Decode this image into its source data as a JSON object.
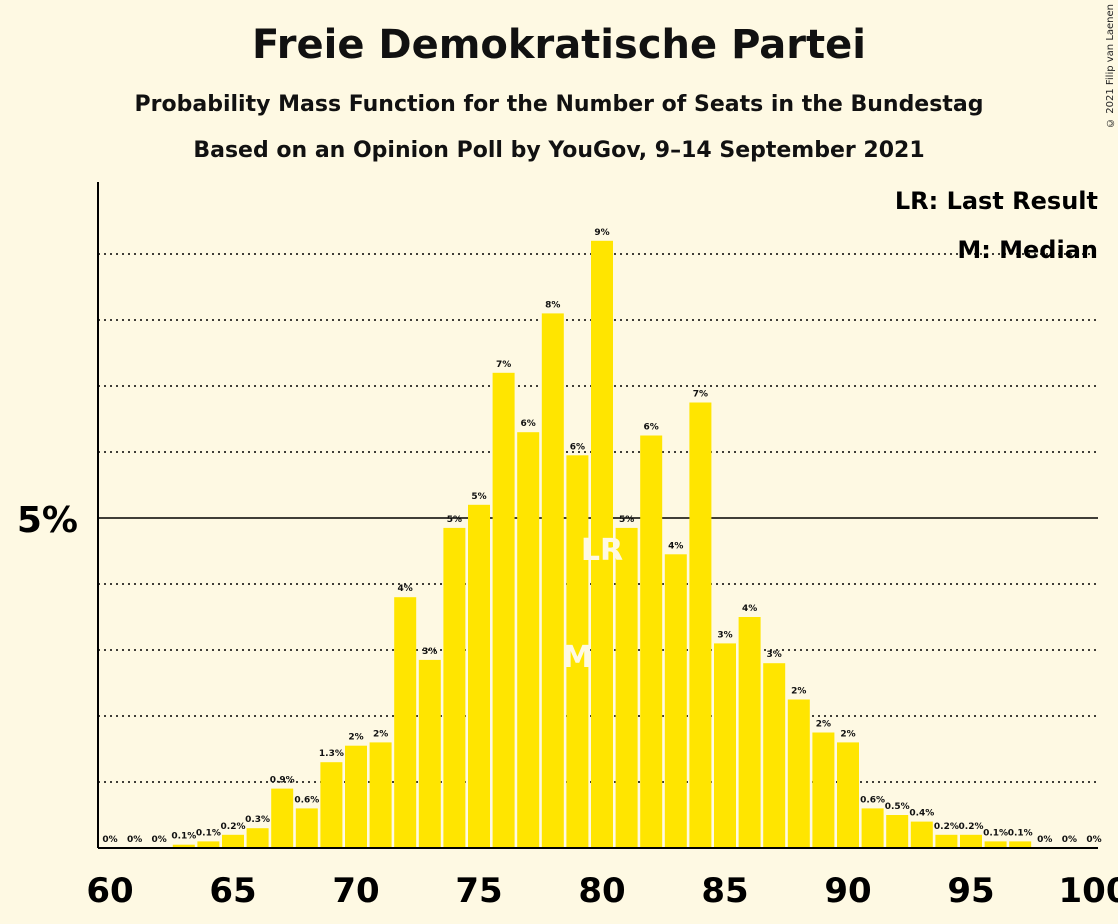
{
  "title": "Freie Demokratische Partei",
  "subtitle": "Probability Mass Function for the Number of Seats in the Bundestag",
  "subtitle2": "Based on an Opinion Poll by YouGov, 9–14 September 2021",
  "copyright": "© 2021 Filip van Laenen",
  "legend": {
    "lr": "LR: Last Result",
    "m": "M: Median"
  },
  "colors": {
    "bar": "#ffe500",
    "background": "#fef9e3",
    "median_label": "#fef9e3"
  },
  "chart_data": {
    "type": "bar",
    "x": [
      60,
      61,
      62,
      63,
      64,
      65,
      66,
      67,
      68,
      69,
      70,
      71,
      72,
      73,
      74,
      75,
      76,
      77,
      78,
      79,
      80,
      81,
      82,
      83,
      84,
      85,
      86,
      87,
      88,
      89,
      90,
      91,
      92,
      93,
      94,
      95,
      96,
      97,
      98,
      99,
      100
    ],
    "values": [
      0,
      0,
      0,
      0.05,
      0.1,
      0.2,
      0.3,
      0.9,
      0.6,
      1.3,
      1.55,
      1.6,
      3.8,
      2.85,
      4.85,
      5.2,
      7.2,
      6.3,
      8.1,
      5.95,
      9.2,
      4.85,
      6.25,
      4.45,
      6.75,
      3.1,
      3.5,
      2.8,
      2.25,
      1.75,
      1.6,
      0.6,
      0.5,
      0.4,
      0.2,
      0.2,
      0.1,
      0.1,
      0,
      0,
      0
    ],
    "labels": [
      "0%",
      "0%",
      "0%",
      "0.1%",
      "0.1%",
      "0.2%",
      "0.3%",
      "0.9%",
      "0.6%",
      "1.3%",
      "2%",
      "2%",
      "4%",
      "3%",
      "5%",
      "5%",
      "7%",
      "6%",
      "8%",
      "6%",
      "9%",
      "5%",
      "6%",
      "4%",
      "7%",
      "3%",
      "4%",
      "3%",
      "2%",
      "2%",
      "2%",
      "0.6%",
      "0.5%",
      "0.4%",
      "0.2%",
      "0.2%",
      "0.1%",
      "0.1%",
      "0%",
      "0%",
      "0%"
    ],
    "x_ticks": [
      60,
      65,
      70,
      75,
      80,
      85,
      90,
      95,
      100
    ],
    "y_tick_label": "5%",
    "y_tick_value": 5,
    "ylim": [
      0,
      10
    ],
    "grid": true,
    "median": 79,
    "last_result": 80,
    "median_mark": "M",
    "last_result_mark": "LR"
  }
}
